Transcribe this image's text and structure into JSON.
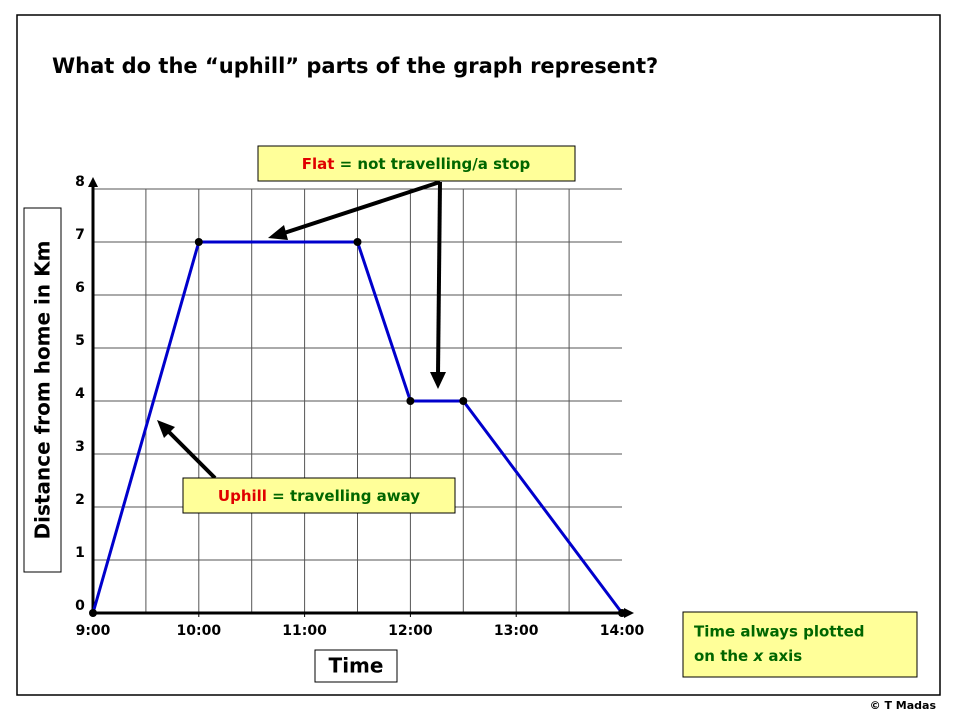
{
  "chart_data": {
    "type": "line",
    "title": "What do the “uphill” parts of the graph represent?",
    "x_label": "Time",
    "y_label": "Distance from home in Km",
    "series": [
      {
        "color": "#0000cc",
        "x": [
          9,
          10,
          11.5,
          12,
          12.5,
          14
        ],
        "values": [
          0,
          7,
          7,
          4,
          4,
          0
        ]
      }
    ],
    "xlim": [
      9,
      14
    ],
    "ylim": [
      0,
      8
    ],
    "xticks": [
      {
        "value": 9,
        "label": "9:00"
      },
      {
        "value": 10,
        "label": "10:00"
      },
      {
        "value": 11,
        "label": "11:00"
      },
      {
        "value": 12,
        "label": "12:00"
      },
      {
        "value": 13,
        "label": "13:00"
      },
      {
        "value": 14,
        "label": "14:00"
      }
    ],
    "yticks": [
      0,
      1,
      2,
      3,
      4,
      5,
      6,
      7,
      8
    ],
    "xgrid": [
      9.5,
      10,
      10.5,
      11,
      11.5,
      12,
      12.5,
      13,
      13.5
    ],
    "grid": true,
    "annotations": {
      "flat": {
        "keyword": "Flat",
        "text": "= not travelling/a stop"
      },
      "uphill": {
        "keyword": "Uphill",
        "text": "= travelling away"
      },
      "note": {
        "line1": "Time always plotted",
        "line2a": "on the ",
        "line2b": "x",
        "line2c": " axis"
      }
    },
    "credit": "© T Madas"
  }
}
